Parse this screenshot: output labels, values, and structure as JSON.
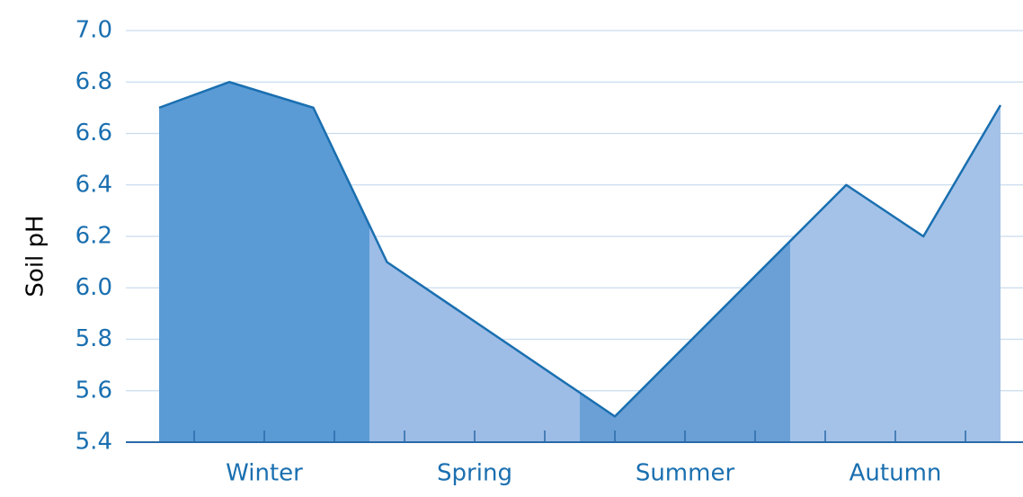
{
  "chart_data": {
    "type": "area",
    "y_label": "Soil pH",
    "categories": [
      "Winter",
      "Spring",
      "Summer",
      "Autumn"
    ],
    "category_colors": [
      "#5b9bd5",
      "#9dbce6",
      "#6aa0d6",
      "#a4c2e8"
    ],
    "x": [
      0,
      1,
      2.2,
      3.25,
      6.5,
      9.8,
      10.9,
      12
    ],
    "series": [
      {
        "color": "#1a6fb0",
        "values": [
          6.7,
          6.8,
          6.7,
          6.1,
          5.5,
          6.4,
          6.2,
          6.71
        ]
      }
    ],
    "xlim": [
      0,
      12
    ],
    "xticks": [
      0.5,
      1.5,
      2.5,
      3.5,
      4.5,
      5.5,
      6.5,
      7.5,
      8.5,
      9.5,
      10.5,
      11.5
    ],
    "ylim": [
      5.4,
      7.0
    ],
    "yticks": [
      {
        "value": 5.4,
        "label": "5.4"
      },
      {
        "value": 5.6,
        "label": "5.6"
      },
      {
        "value": 5.8,
        "label": "5.8"
      },
      {
        "value": 6.0,
        "label": "6.0"
      },
      {
        "value": 6.2,
        "label": "6.2"
      },
      {
        "value": 6.4,
        "label": "6.4"
      },
      {
        "value": 6.6,
        "label": "6.6"
      },
      {
        "value": 6.8,
        "label": "6.8"
      },
      {
        "value": 7.0,
        "label": "7.0"
      }
    ],
    "grid": true
  }
}
